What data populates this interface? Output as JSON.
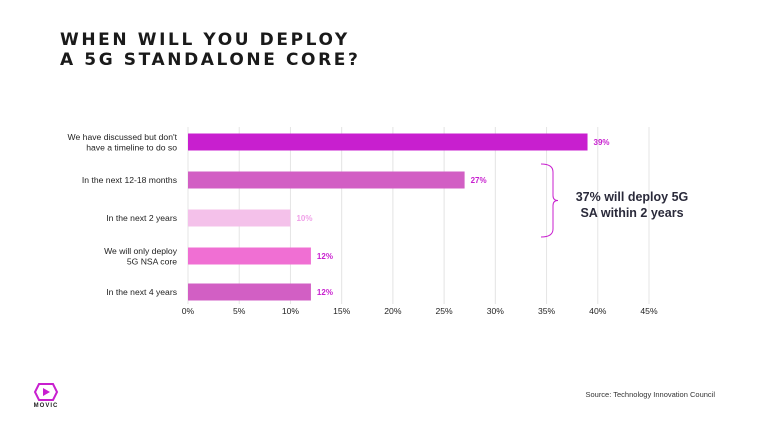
{
  "title_lines": [
    "WHEN WILL YOU DEPLOY",
    "A 5G STANDALONE CORE?"
  ],
  "annotation": {
    "lines": [
      "37% will deploy 5G",
      "SA within 2 years"
    ],
    "spans_categories": [
      1,
      2
    ]
  },
  "source": "Source: Technology Innovation Council",
  "logo": {
    "text": "MOVIC",
    "color": "#c81fcf"
  },
  "colors": {
    "bar_top": "#c81fcf",
    "bar_mid": "#d25fc4",
    "bar_light": "#f4c1ea",
    "bar_pink": "#f06fd3",
    "value_text": "#c81fcf",
    "value_text_light": "#f0a0e8",
    "grid": "#e4e4e4",
    "bracket": "#c81fcf"
  },
  "chart_data": {
    "type": "bar",
    "orientation": "horizontal",
    "title": "WHEN WILL YOU DEPLOY A 5G STANDALONE CORE?",
    "categories": [
      [
        "We have discussed but don't",
        "have a timeline to do so"
      ],
      [
        "In the next 12-18 months"
      ],
      [
        "In the next 2 years"
      ],
      [
        "We will only deploy",
        "5G NSA core"
      ],
      [
        "In the next 4 years"
      ]
    ],
    "values": [
      39,
      27,
      10,
      12,
      12
    ],
    "value_labels": [
      "39%",
      "27%",
      "10%",
      "12%",
      "12%"
    ],
    "bar_colors": [
      "#c81fcf",
      "#d25fc4",
      "#f4c1ea",
      "#f06fd3",
      "#d25fc4"
    ],
    "label_colors": [
      "#c81fcf",
      "#c81fcf",
      "#f0a0e8",
      "#c81fcf",
      "#c81fcf"
    ],
    "xlim": [
      0,
      45
    ],
    "xticks": [
      0,
      5,
      10,
      15,
      20,
      25,
      30,
      35,
      40,
      45
    ],
    "xtick_labels": [
      "0%",
      "5%",
      "10%",
      "15%",
      "20%",
      "25%",
      "30%",
      "35%",
      "40%",
      "45%"
    ],
    "grid": true,
    "xlabel": "",
    "ylabel": ""
  }
}
